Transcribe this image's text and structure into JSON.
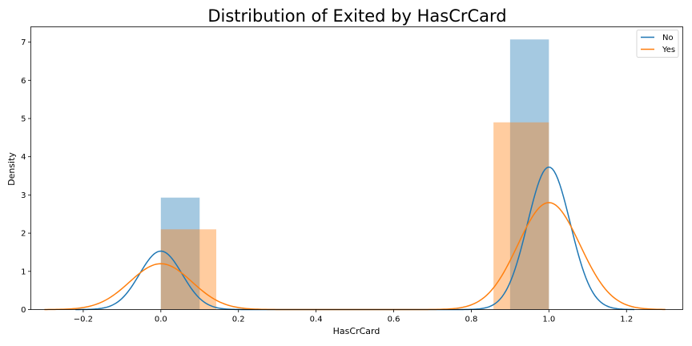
{
  "chart_data": {
    "type": "histogram-kde",
    "title": "Distribution of Exited by HasCrCard",
    "xlabel": "HasCrCard",
    "ylabel": "Density",
    "xlim": [
      -0.335,
      1.345
    ],
    "ylim": [
      0,
      7.4
    ],
    "xticks": [
      -0.2,
      0.0,
      0.2,
      0.4,
      0.6,
      0.8,
      1.0,
      1.2
    ],
    "xtick_labels": [
      "−0.2",
      "0.0",
      "0.2",
      "0.4",
      "0.6",
      "0.8",
      "1.0",
      "1.2"
    ],
    "yticks": [
      0,
      1,
      2,
      3,
      4,
      5,
      6,
      7
    ],
    "ytick_labels": [
      "0",
      "1",
      "2",
      "3",
      "4",
      "5",
      "6",
      "7"
    ],
    "legend": {
      "location": "top-right",
      "entries": [
        "No",
        "Yes"
      ]
    },
    "series": [
      {
        "name": "No",
        "line_color": "#1f77b4",
        "bar_color": "#1f77b4",
        "bar_opacity": 0.4,
        "bars": [
          {
            "x0": 0.0,
            "x1": 0.1,
            "height": 2.93
          },
          {
            "x0": 0.9,
            "x1": 1.0,
            "height": 7.07
          }
        ],
        "kde": {
          "peaks": [
            {
              "mu": 0.0,
              "sigma": 0.055,
              "height": 1.53
            },
            {
              "mu": 1.0,
              "sigma": 0.055,
              "height": 3.73
            }
          ],
          "range": [
            -0.22,
            1.22
          ]
        }
      },
      {
        "name": "Yes",
        "line_color": "#ff7f0e",
        "bar_color": "#ff7f0e",
        "bar_opacity": 0.4,
        "bars": [
          {
            "x0": 0.0,
            "x1": 0.1428,
            "height": 2.1
          },
          {
            "x0": 0.8572,
            "x1": 1.0,
            "height": 4.9
          }
        ],
        "kde": {
          "peaks": [
            {
              "mu": 0.0,
              "sigma": 0.08,
              "height": 1.2
            },
            {
              "mu": 1.0,
              "sigma": 0.08,
              "height": 2.8
            }
          ],
          "range": [
            -0.3,
            1.3
          ]
        }
      }
    ]
  }
}
